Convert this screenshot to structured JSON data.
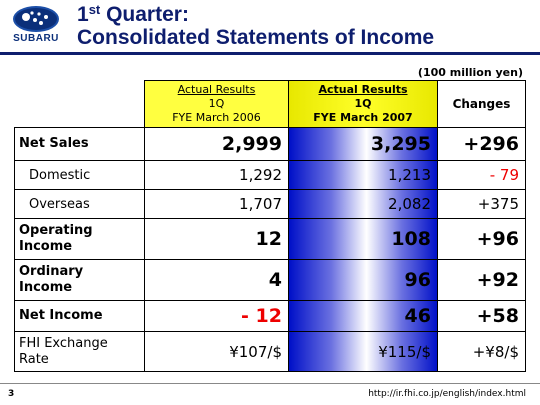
{
  "header": {
    "logo_text": "SUBARU",
    "title_line1_main": "1",
    "title_line1_sup": "st",
    "title_line1_rest": " Quarter:",
    "title_line2": "Consolidated Statements of Income"
  },
  "unit_note": "(100 million yen)",
  "columns": {
    "col1": {
      "line1": "Actual Results",
      "line2": "1Q",
      "line3": "FYE March 2006"
    },
    "col2": {
      "line1": "Actual Results",
      "line2": "1Q",
      "line3": "FYE March 2007"
    },
    "col3": {
      "label": "Changes"
    }
  },
  "rows": [
    {
      "label": "Net Sales",
      "v2006": "2,999",
      "v2007": "3,295",
      "change": "+296"
    },
    {
      "label": "Domestic",
      "v2006": "1,292",
      "v2007": "1,213",
      "change": "- 79"
    },
    {
      "label": "Overseas",
      "v2006": "1,707",
      "v2007": "2,082",
      "change": "+375"
    },
    {
      "label_line1": "Operating",
      "label_line2": "Income",
      "v2006": "12",
      "v2007": "108",
      "change": "+96"
    },
    {
      "label_line1": "Ordinary",
      "label_line2": "Income",
      "v2006": "4",
      "v2007": "96",
      "change": "+92"
    },
    {
      "label": "Net Income",
      "v2006": "- 12",
      "v2007": "46",
      "change": "+58"
    },
    {
      "label_line1": "FHI Exchange",
      "label_line2": "Rate",
      "v2006": "¥107/$",
      "v2007": "¥115/$",
      "change": "+¥8/$"
    }
  ],
  "colors": {
    "negative": "#ee0000",
    "header_yellow": "#ffff40",
    "title_navy": "#0e1e6e"
  },
  "footer": {
    "page_number": "3",
    "url": "http://ir.fhi.co.jp/english/index.html"
  }
}
